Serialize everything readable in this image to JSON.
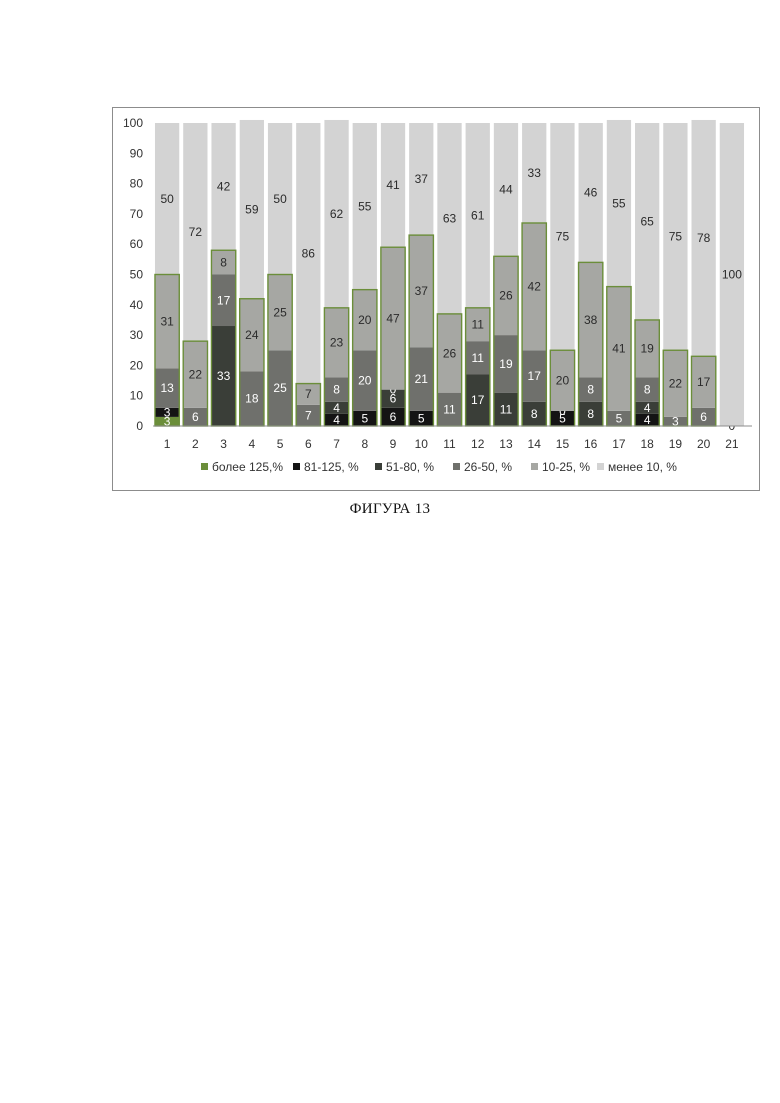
{
  "caption": "ФИГУРА 13",
  "chart_data": {
    "type": "bar",
    "stacked": true,
    "title": "",
    "xlabel": "",
    "ylabel": "",
    "ylim": [
      0,
      100
    ],
    "yticks": [
      0,
      10,
      20,
      30,
      40,
      50,
      60,
      70,
      80,
      90,
      100
    ],
    "grid": false,
    "legend_position": "bottom",
    "categories": [
      "1",
      "2",
      "3",
      "4",
      "5",
      "6",
      "7",
      "8",
      "9",
      "10",
      "11",
      "12",
      "13",
      "14",
      "15",
      "16",
      "17",
      "18",
      "19",
      "20",
      "21"
    ],
    "series": [
      {
        "name": "более 125,%",
        "color": "#6b8e3a",
        "label_color": "#ffffff",
        "values": [
          3,
          0,
          0,
          0,
          0,
          0,
          0,
          0,
          0,
          0,
          0,
          0,
          0,
          0,
          0,
          0,
          0,
          0,
          0,
          0,
          0
        ]
      },
      {
        "name": "81-125, %",
        "color": "#141414",
        "label_color": "#ffffff",
        "values": [
          3,
          0,
          0,
          0,
          0,
          0,
          4,
          5,
          6,
          5,
          0,
          0,
          0,
          0,
          5,
          0,
          0,
          4,
          0,
          0,
          0
        ]
      },
      {
        "name": "51-80, %",
        "color": "#3a3e38",
        "label_color": "#ffffff",
        "values": [
          0,
          0,
          33,
          0,
          0,
          0,
          4,
          0,
          6,
          0,
          0,
          17,
          11,
          8,
          0,
          8,
          0,
          4,
          0,
          0,
          0
        ]
      },
      {
        "name": "26-50, %",
        "color": "#6f706c",
        "label_color": "#ffffff",
        "values": [
          13,
          6,
          17,
          18,
          25,
          7,
          8,
          20,
          0,
          21,
          11,
          11,
          19,
          17,
          0,
          8,
          5,
          8,
          3,
          6,
          0
        ]
      },
      {
        "name": "10-25, %",
        "color": "#a6a7a3",
        "label_color": "#2b2b2b",
        "values": [
          31,
          22,
          8,
          24,
          25,
          7,
          23,
          20,
          47,
          37,
          26,
          11,
          26,
          42,
          20,
          38,
          41,
          19,
          22,
          17,
          0
        ]
      },
      {
        "name": "менее 10, %",
        "color": "#d3d3d3",
        "label_color": "#2b2b2b",
        "values": [
          50,
          72,
          42,
          59,
          50,
          86,
          62,
          55,
          41,
          37,
          63,
          61,
          44,
          33,
          75,
          46,
          55,
          65,
          75,
          78,
          100
        ]
      }
    ],
    "data_labels": [
      [
        "3",
        "3",
        "",
        "13",
        "31",
        "50"
      ],
      [
        "0",
        "",
        "",
        "6",
        "22",
        "72"
      ],
      [
        "0",
        "",
        "33",
        "17",
        "8",
        "42"
      ],
      [
        "0",
        "",
        "",
        "18",
        "24",
        "59"
      ],
      [
        "0",
        "",
        "",
        "25",
        "25",
        "50"
      ],
      [
        "0",
        "",
        "",
        "7",
        "7",
        "86"
      ],
      [
        "",
        "4",
        "4",
        "8",
        "23",
        "62"
      ],
      [
        "0",
        "5",
        "",
        "20",
        "20",
        "55"
      ],
      [
        "",
        "6",
        "6",
        "0",
        "47",
        "41"
      ],
      [
        "0",
        "5",
        "",
        "21",
        "37",
        "37"
      ],
      [
        "0",
        "",
        "",
        "11",
        "26",
        "63"
      ],
      [
        "0",
        "",
        "17",
        "11",
        "11",
        "61"
      ],
      [
        "0",
        "",
        "11",
        "19",
        "26",
        "44"
      ],
      [
        "0",
        "",
        "8",
        "17",
        "42",
        "33"
      ],
      [
        "",
        "5",
        "",
        "0",
        "20",
        "75"
      ],
      [
        "0",
        "",
        "8",
        "8",
        "38",
        "46"
      ],
      [
        "0",
        "",
        "",
        "5",
        "41",
        "55"
      ],
      [
        "",
        "4",
        "4",
        "8",
        "19",
        "65"
      ],
      [
        "0",
        "",
        "",
        "3",
        "22",
        "75"
      ],
      [
        "0",
        "",
        "",
        "6",
        "17",
        "78"
      ],
      [
        "",
        "",
        "",
        "",
        "0",
        "100"
      ]
    ],
    "bar_outline_color": "#6b8e3a",
    "axis_color": "#8c8c8c"
  }
}
